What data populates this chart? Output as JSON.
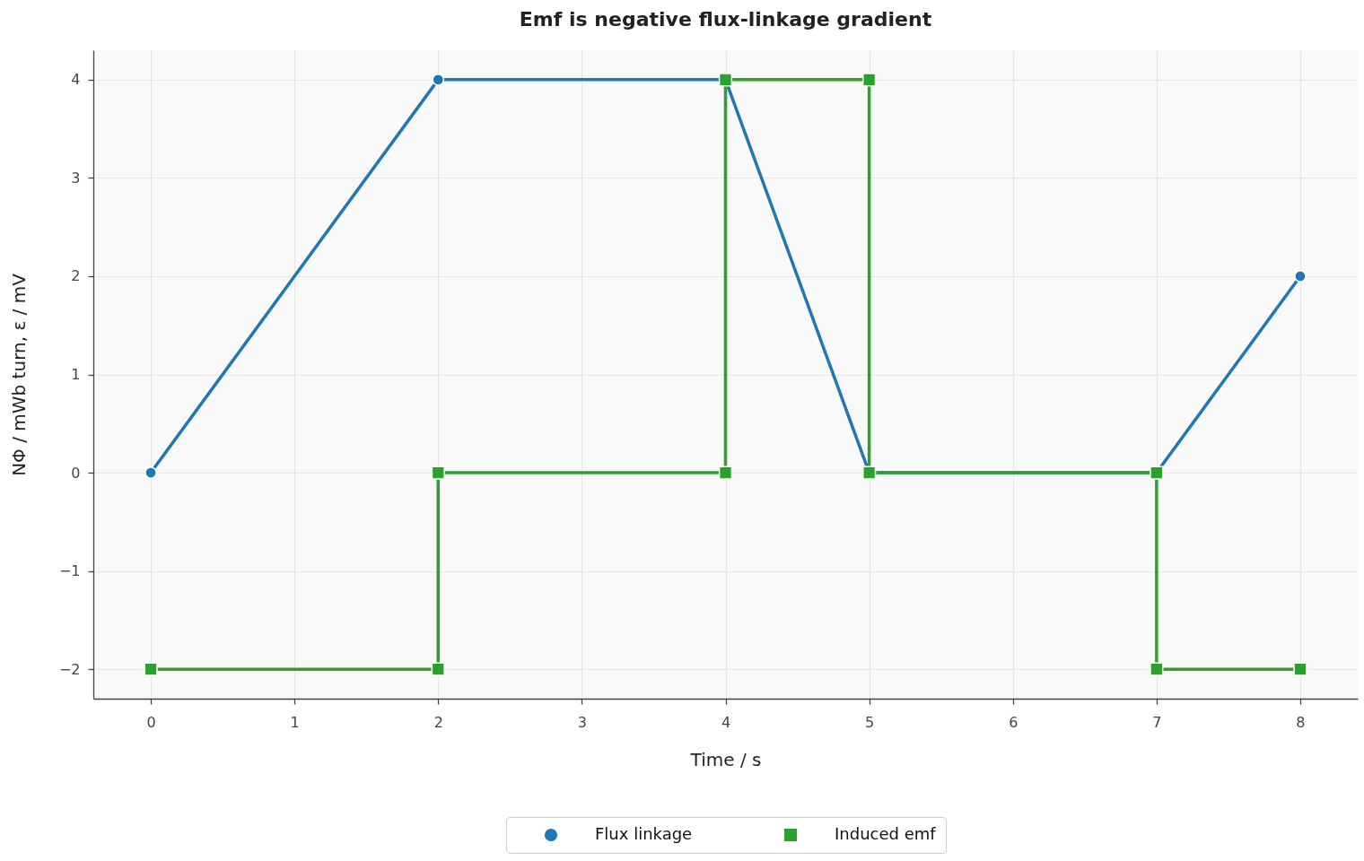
{
  "chart_data": {
    "type": "line",
    "title": "Emf is negative flux-linkage gradient",
    "xlabel": "Time / s",
    "ylabel": "NΦ / mWb turn, ε / mV",
    "series": [
      {
        "name": "Flux linkage",
        "color": "#1f77b4",
        "marker": "circle",
        "x": [
          0,
          2,
          4,
          5,
          7,
          8
        ],
        "values": [
          0,
          4,
          4,
          0,
          0,
          2
        ]
      },
      {
        "name": "Induced emf",
        "color": "#2ca02c",
        "marker": "square",
        "x": [
          0,
          2,
          2,
          4,
          4,
          5,
          5,
          7,
          7,
          8
        ],
        "values": [
          -2,
          -2,
          0,
          0,
          4,
          4,
          0,
          0,
          -2,
          -2
        ]
      }
    ],
    "xlim": [
      -0.4,
      8.4
    ],
    "xticks": [
      0,
      1,
      2,
      3,
      4,
      5,
      6,
      7,
      8
    ],
    "ylim": [
      -2.3,
      4.3
    ],
    "yticks": [
      {
        "value": -2,
        "label": "−2"
      },
      {
        "value": -1,
        "label": "−1"
      },
      0,
      1,
      2,
      3,
      4
    ],
    "grid": true,
    "legend": "bottom",
    "line_style": "solid"
  }
}
